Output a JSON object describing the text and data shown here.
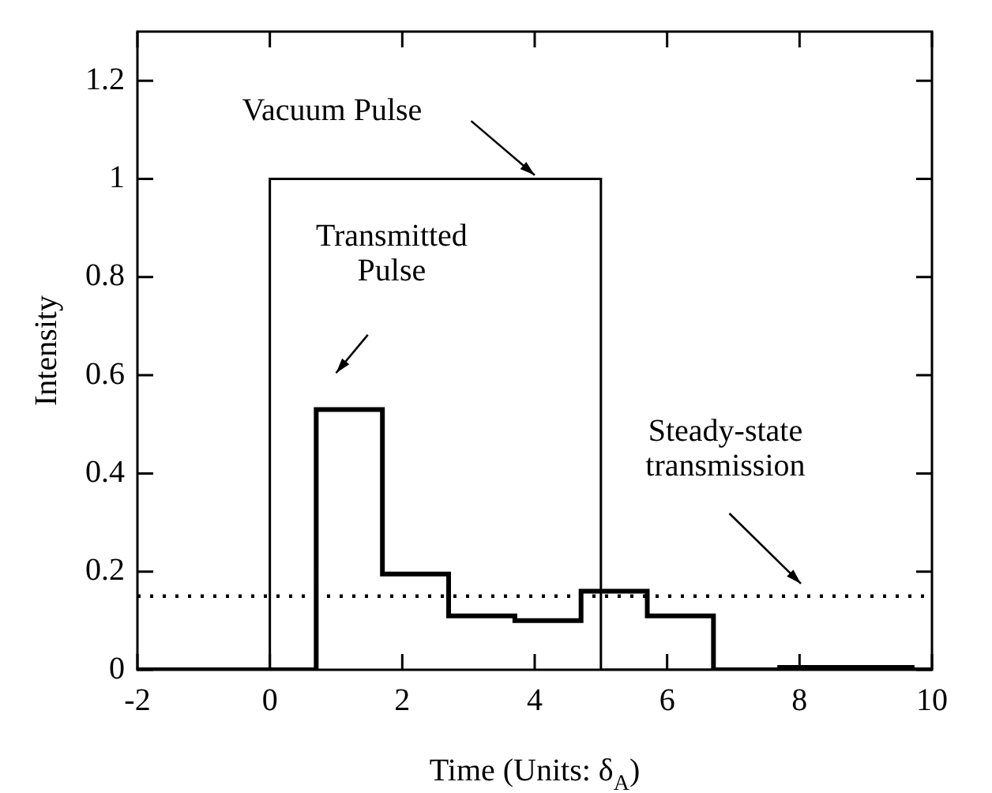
{
  "chart_data": {
    "type": "step",
    "xlabel": "Time (Units: δ$_{A}$)",
    "ylabel": "Intensity",
    "series": [
      {
        "color": "#000000",
        "x": [
          -2,
          0,
          5,
          10
        ],
        "values": [
          0,
          1,
          0,
          0
        ]
      },
      {
        "color": "#000000",
        "x": [
          -2,
          0.7,
          1.7,
          2.7,
          3.7,
          4.7,
          5.7,
          6.7,
          7.7,
          9.7,
          10
        ],
        "values": [
          0,
          0.53,
          0.195,
          0.11,
          0.1,
          0.16,
          0.11,
          0,
          0.005,
          0,
          0
        ]
      }
    ],
    "xlim": [
      -2,
      10
    ],
    "xticks": [
      -2,
      0,
      2,
      4,
      6,
      8,
      10
    ],
    "ylim": [
      0,
      1.3
    ],
    "yticks": [
      0,
      0.2,
      0.4,
      0.6,
      0.8,
      1,
      1.2
    ],
    "ref_lines": [
      {
        "axis": "y",
        "value": 0.15,
        "line_style": "dotted",
        "color": "#000000"
      }
    ],
    "annotations": [
      "Vacuum Pulse",
      "Transmitted\nPulse",
      "Steady-state\ntransmission"
    ],
    "grid": false,
    "legend": false
  }
}
